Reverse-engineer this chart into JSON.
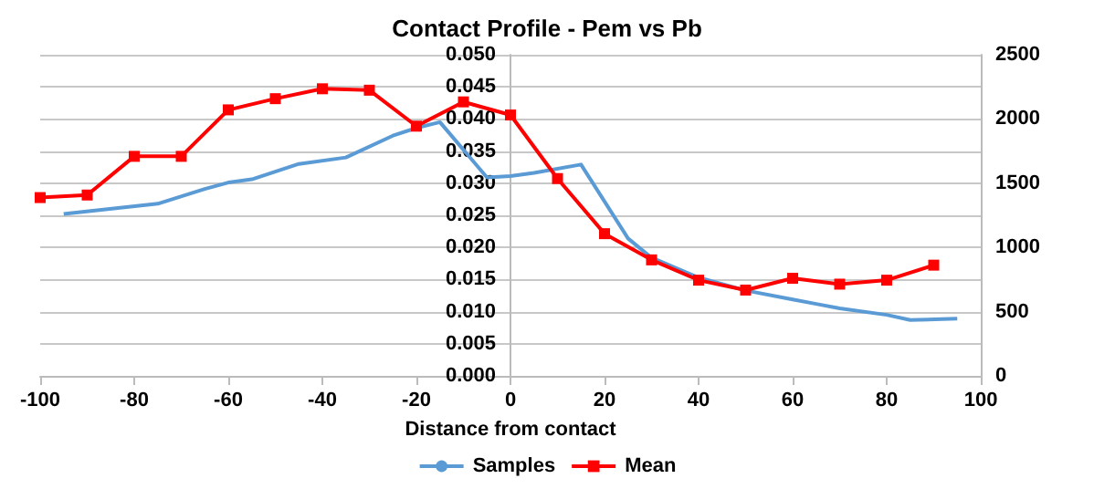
{
  "chart_data": {
    "type": "line",
    "title": "Contact Profile - Pem vs Pb",
    "xlabel": "Distance from contact",
    "xlim": [
      -100,
      100
    ],
    "xticks": [
      -100,
      -80,
      -60,
      -40,
      -20,
      0,
      20,
      40,
      60,
      80,
      100
    ],
    "ylim": [
      0,
      0.05
    ],
    "yticks": [
      {
        "value": 0,
        "label": "0.000"
      },
      {
        "value": 0.005,
        "label": "0.005"
      },
      {
        "value": 0.01,
        "label": "0.010"
      },
      {
        "value": 0.015,
        "label": "0.015"
      },
      {
        "value": 0.02,
        "label": "0.020"
      },
      {
        "value": 0.025,
        "label": "0.025"
      },
      {
        "value": 0.03,
        "label": "0.030"
      },
      {
        "value": 0.035,
        "label": "0.035"
      },
      {
        "value": 0.04,
        "label": "0.040"
      },
      {
        "value": 0.045,
        "label": "0.045"
      },
      {
        "value": 0.05,
        "label": "0.050"
      }
    ],
    "y2lim": [
      0,
      2500
    ],
    "y2ticks": [
      0,
      500,
      1000,
      1500,
      2000,
      2500
    ],
    "grid": "y",
    "legend": "bottom",
    "series": [
      {
        "name": "Samples",
        "color": "#5b9bd5",
        "marker": "none",
        "x": [
          -95,
          -75,
          -65,
          -60,
          -55,
          -45,
          -35,
          -25,
          -20,
          -15,
          -5,
          0,
          5,
          15,
          25,
          30,
          40,
          50,
          60,
          65,
          70,
          80,
          85,
          95
        ],
        "values": [
          0.0252,
          0.0268,
          0.0291,
          0.0301,
          0.0306,
          0.033,
          0.034,
          0.0374,
          0.0386,
          0.0395,
          0.0309,
          0.0311,
          0.0316,
          0.0329,
          0.0214,
          0.0184,
          0.0153,
          0.0133,
          0.0119,
          0.0112,
          0.0105,
          0.0095,
          0.0087,
          0.0089
        ]
      },
      {
        "name": "Mean",
        "color": "#ff0000",
        "marker": "square",
        "axis": "y2",
        "x": [
          -100,
          -90,
          -80,
          -70,
          -60,
          -50,
          -40,
          -30,
          -20,
          -10,
          0,
          10,
          20,
          30,
          40,
          50,
          60,
          70,
          80,
          90
        ],
        "values": [
          1388,
          1408,
          1709,
          1709,
          2071,
          2158,
          2235,
          2224,
          1944,
          2133,
          2031,
          1536,
          1107,
          903,
          745,
          668,
          760,
          714,
          745,
          862
        ]
      }
    ]
  }
}
